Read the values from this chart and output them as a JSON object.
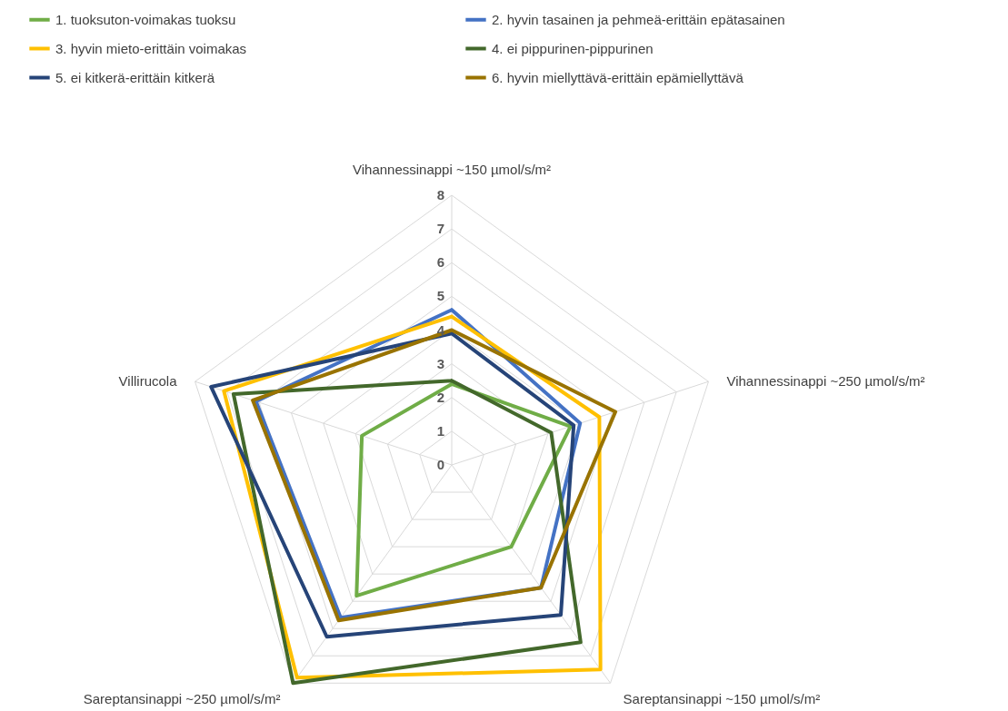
{
  "chart_data": {
    "type": "radar",
    "categories": [
      "Vihannessinappi ~150 µmol/s/m²",
      "Vihannessinappi ~250 µmol/s/m²",
      "Sareptansinappi ~150 µmol/s/m²",
      "Sareptansinappi ~250 µmol/s/m²",
      "Villirucola"
    ],
    "series": [
      {
        "name": "1. tuoksuton-voimakas tuoksu",
        "color": "#70ad47",
        "values": [
          2.4,
          3.7,
          3.0,
          4.8,
          2.8
        ]
      },
      {
        "name": "2. hyvin tasainen ja pehmeä-erittäin epätasainen",
        "color": "#4472c4",
        "values": [
          4.6,
          4.0,
          4.5,
          5.6,
          6.1
        ]
      },
      {
        "name": "3. hyvin mieto-erittäin voimakas",
        "color": "#ffc000",
        "values": [
          4.4,
          4.6,
          7.5,
          7.8,
          7.1
        ]
      },
      {
        "name": "4. ei pippurinen-pippurinen",
        "color": "#43682b",
        "values": [
          2.5,
          3.1,
          6.5,
          8.0,
          6.8
        ]
      },
      {
        "name": "5. ei kitkerä-erittäin kitkerä",
        "color": "#264478",
        "values": [
          3.9,
          3.8,
          5.5,
          6.3,
          7.5
        ]
      },
      {
        "name": "6. hyvin miellyttävä-erittäin epämiellyttävä",
        "color": "#997300",
        "values": [
          4.0,
          5.1,
          4.5,
          5.7,
          6.2
        ]
      }
    ],
    "ylim": [
      0,
      8
    ],
    "yticks": [
      0,
      1,
      2,
      3,
      4,
      5,
      6,
      7,
      8
    ],
    "grid": true,
    "legend": "top"
  }
}
